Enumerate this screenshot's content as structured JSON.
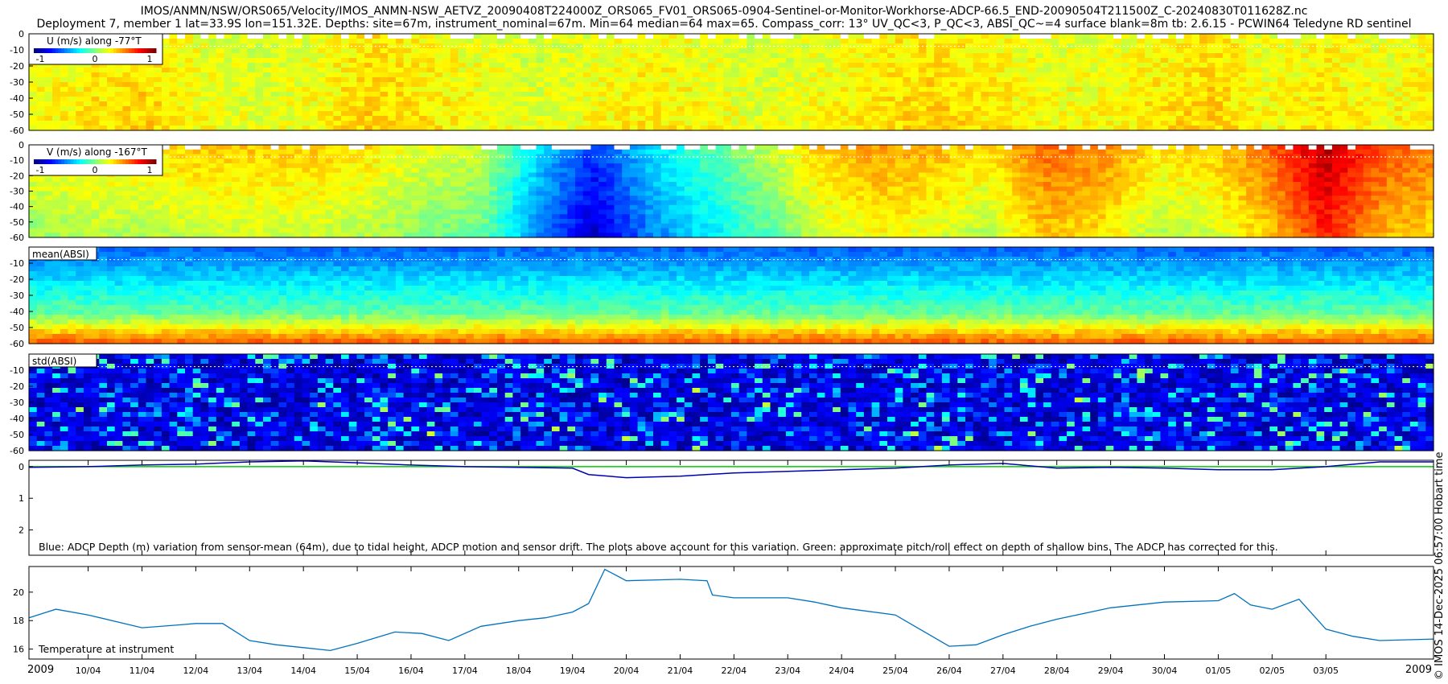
{
  "figure": {
    "title_line1": "IMOS/ANMN/NSW/ORS065/Velocity/IMOS_ANMN-NSW_AETVZ_20090408T224000Z_ORS065_FV01_ORS065-0904-Sentinel-or-Monitor-Workhorse-ADCP-66.5_END-20090504T211500Z_C-20240830T011628Z.nc",
    "title_line2": "Deployment 7, member 1 lat=33.9S lon=151.32E. Depths: site=67m, instrument_nominal=67m. Min=64 median=64 max=65. Compass_corr: 13° UV_QC<3, P_QC<3, ABSI_QC~=4 surface blank=8m tb: 2.6.15 - PCWIN64 Teledyne RD sentinel",
    "side_note": "© IMOS 14-Dec-2025 06:57:00 Hobart time"
  },
  "chart_data": [
    {
      "type": "heatmap",
      "panel": "u",
      "label": "U (m/s) along -77°T",
      "colorbar_ticks": [
        "-1",
        "0",
        "1"
      ],
      "clim": [
        -1,
        1
      ],
      "ylim": [
        -60,
        0
      ],
      "yticks": [
        "0",
        "-10",
        "-20",
        "-30",
        "-40",
        "-50",
        "-60"
      ],
      "field": {
        "mean": [
          0.2,
          0.25,
          0.3,
          0.2,
          0.15,
          0.2,
          0.3,
          0.25,
          0.2,
          0.15,
          0.2,
          0.25,
          0.2,
          0.15,
          0.2,
          0.25,
          0.3,
          0.25,
          0.2,
          0.2,
          0.25,
          0.3,
          0.2,
          0.25,
          0.2,
          0.25
        ],
        "depth_gradient": 0.05,
        "noise": 0.18,
        "surface_gap": true
      }
    },
    {
      "type": "heatmap",
      "panel": "v",
      "label": "V (m/s) along -167°T",
      "colorbar_ticks": [
        "-1",
        "0",
        "1"
      ],
      "clim": [
        -1,
        1
      ],
      "ylim": [
        -60,
        0
      ],
      "yticks": [
        "0",
        "-10",
        "-20",
        "-30",
        "-40",
        "-50",
        "-60"
      ],
      "field": {
        "mean": [
          0.25,
          0.3,
          0.3,
          0.35,
          0.35,
          0.35,
          0.3,
          0.2,
          0.15,
          -0.3,
          -0.65,
          -0.3,
          -0.1,
          0.1,
          0.35,
          0.45,
          0.4,
          0.3,
          0.55,
          0.5,
          0.3,
          0.35,
          0.55,
          0.9,
          0.6,
          0.5
        ],
        "depth_gradient": -0.2,
        "noise": 0.15,
        "surface_gap": true
      }
    },
    {
      "type": "heatmap",
      "panel": "mean_absi",
      "label": "mean(ABSI)",
      "ylim": [
        -60,
        0
      ],
      "yticks": [
        "-10",
        "-20",
        "-30",
        "-40",
        "-50",
        "-60"
      ],
      "field": {
        "top": -0.55,
        "mid": -0.05,
        "bottom": 0.55,
        "noise": 0.15
      }
    },
    {
      "type": "heatmap",
      "panel": "std_absi",
      "label": "std(ABSI)",
      "ylim": [
        -60,
        0
      ],
      "yticks": [
        "-10",
        "-20",
        "-30",
        "-40",
        "-50",
        "-60"
      ],
      "field": {
        "base": -0.85,
        "noise": 0.25
      }
    },
    {
      "type": "line",
      "panel": "depth",
      "ylim": [
        2.8,
        -0.2
      ],
      "yticks": [
        "0",
        "1",
        "2"
      ],
      "annotation": "Blue: ADCP Depth (m) variation from sensor-mean (64m), due to tidal height, ADCP motion and sensor drift. The plots above account for this variation. Green: approximate pitch/roll effect on depth of shallow bins. The ADCP has corrected for this.",
      "x_days": [
        8.9,
        10,
        11,
        12,
        13,
        14,
        15,
        16,
        17,
        18,
        19,
        19.3,
        20,
        21,
        22,
        23,
        24,
        25,
        26,
        27,
        28,
        29,
        30,
        31,
        32,
        33,
        34,
        35
      ],
      "series": [
        {
          "color": "#0000b3",
          "values": [
            0.02,
            0.0,
            -0.05,
            -0.08,
            -0.15,
            -0.18,
            -0.12,
            -0.05,
            0.0,
            0.02,
            0.05,
            0.25,
            0.35,
            0.3,
            0.2,
            0.15,
            0.1,
            0.05,
            -0.05,
            -0.1,
            0.05,
            0.02,
            0.05,
            0.1,
            0.1,
            0.0,
            -0.15,
            -0.15
          ]
        },
        {
          "color": "#00cc00",
          "values": [
            0.0,
            0.0,
            0.0,
            0.0,
            0.0,
            0.0,
            0.0,
            0.0,
            0.0,
            0.0,
            0.0,
            0.0,
            0.0,
            0.0,
            0.0,
            0.0,
            0.0,
            0.0,
            0.0,
            0.0,
            0.0,
            0.0,
            0.0,
            0.0,
            0.0,
            0.0,
            0.0,
            0.0
          ]
        }
      ]
    },
    {
      "type": "line",
      "panel": "temperature",
      "label": "Temperature at instrument",
      "ylim": [
        15.3,
        21.8
      ],
      "yticks": [
        "16",
        "18",
        "20"
      ],
      "x_days": [
        8.9,
        9.4,
        10,
        11,
        11.7,
        12,
        12.5,
        13,
        13.5,
        14,
        14.5,
        15,
        15.7,
        16.2,
        16.7,
        17.3,
        18,
        18.5,
        19,
        19.3,
        19.6,
        20,
        21,
        21.5,
        21.6,
        22,
        23,
        23.5,
        24,
        25,
        26,
        26.5,
        27,
        27.5,
        28,
        29,
        30,
        31,
        31.3,
        31.6,
        32,
        32.5,
        33,
        33.5,
        34,
        35
      ],
      "values": [
        18.2,
        18.8,
        18.4,
        17.5,
        17.7,
        17.8,
        17.8,
        16.6,
        16.3,
        16.1,
        15.9,
        16.4,
        17.2,
        17.1,
        16.6,
        17.6,
        18.0,
        18.2,
        18.6,
        19.2,
        21.6,
        20.8,
        20.9,
        20.8,
        19.8,
        19.6,
        19.6,
        19.3,
        18.9,
        18.4,
        16.2,
        16.3,
        17.0,
        17.6,
        18.1,
        18.9,
        19.3,
        19.4,
        19.9,
        19.1,
        18.8,
        19.5,
        17.4,
        16.9,
        16.6,
        16.7
      ],
      "color": "#0072bd"
    }
  ],
  "x_axis": {
    "start_year": "2009",
    "end_year": "2009",
    "date_ticks": [
      "10/04",
      "11/04",
      "12/04",
      "13/04",
      "14/04",
      "15/04",
      "16/04",
      "17/04",
      "18/04",
      "19/04",
      "20/04",
      "21/04",
      "22/04",
      "23/04",
      "24/04",
      "25/04",
      "26/04",
      "27/04",
      "28/04",
      "29/04",
      "30/04",
      "01/05",
      "02/05",
      "03/05"
    ],
    "xlim_days": [
      8.9,
      35.0
    ]
  }
}
